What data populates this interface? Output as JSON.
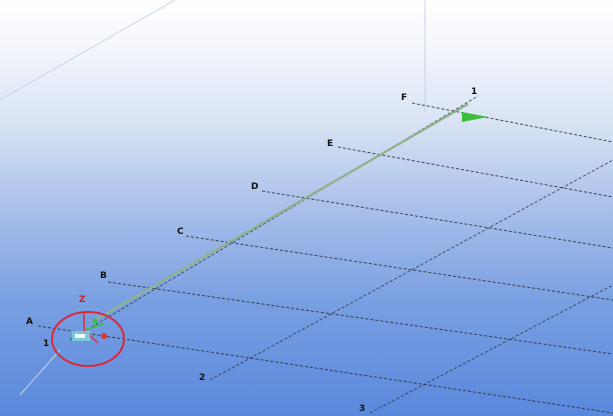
{
  "viewport": {
    "colors": {
      "grid_line": "#2a2f3a",
      "faint_line": "#c9d4e6",
      "selected_beam": "#8fb28a",
      "selection_circle": "#d92a3a",
      "axis_red": "#e03030",
      "axis_green": "#3bbf3b",
      "axis_cyan": "#7fd6d6",
      "label": "#111111",
      "label_red": "#d02020"
    }
  },
  "grid": {
    "row_labels": [
      "A",
      "B",
      "C",
      "D",
      "E",
      "F"
    ],
    "column_labels": [
      "1",
      "2",
      "3"
    ],
    "origin_axis_label": "1",
    "axis_marker_label": "Z"
  },
  "marker": {
    "icon": "coordinate-axes-icon"
  }
}
